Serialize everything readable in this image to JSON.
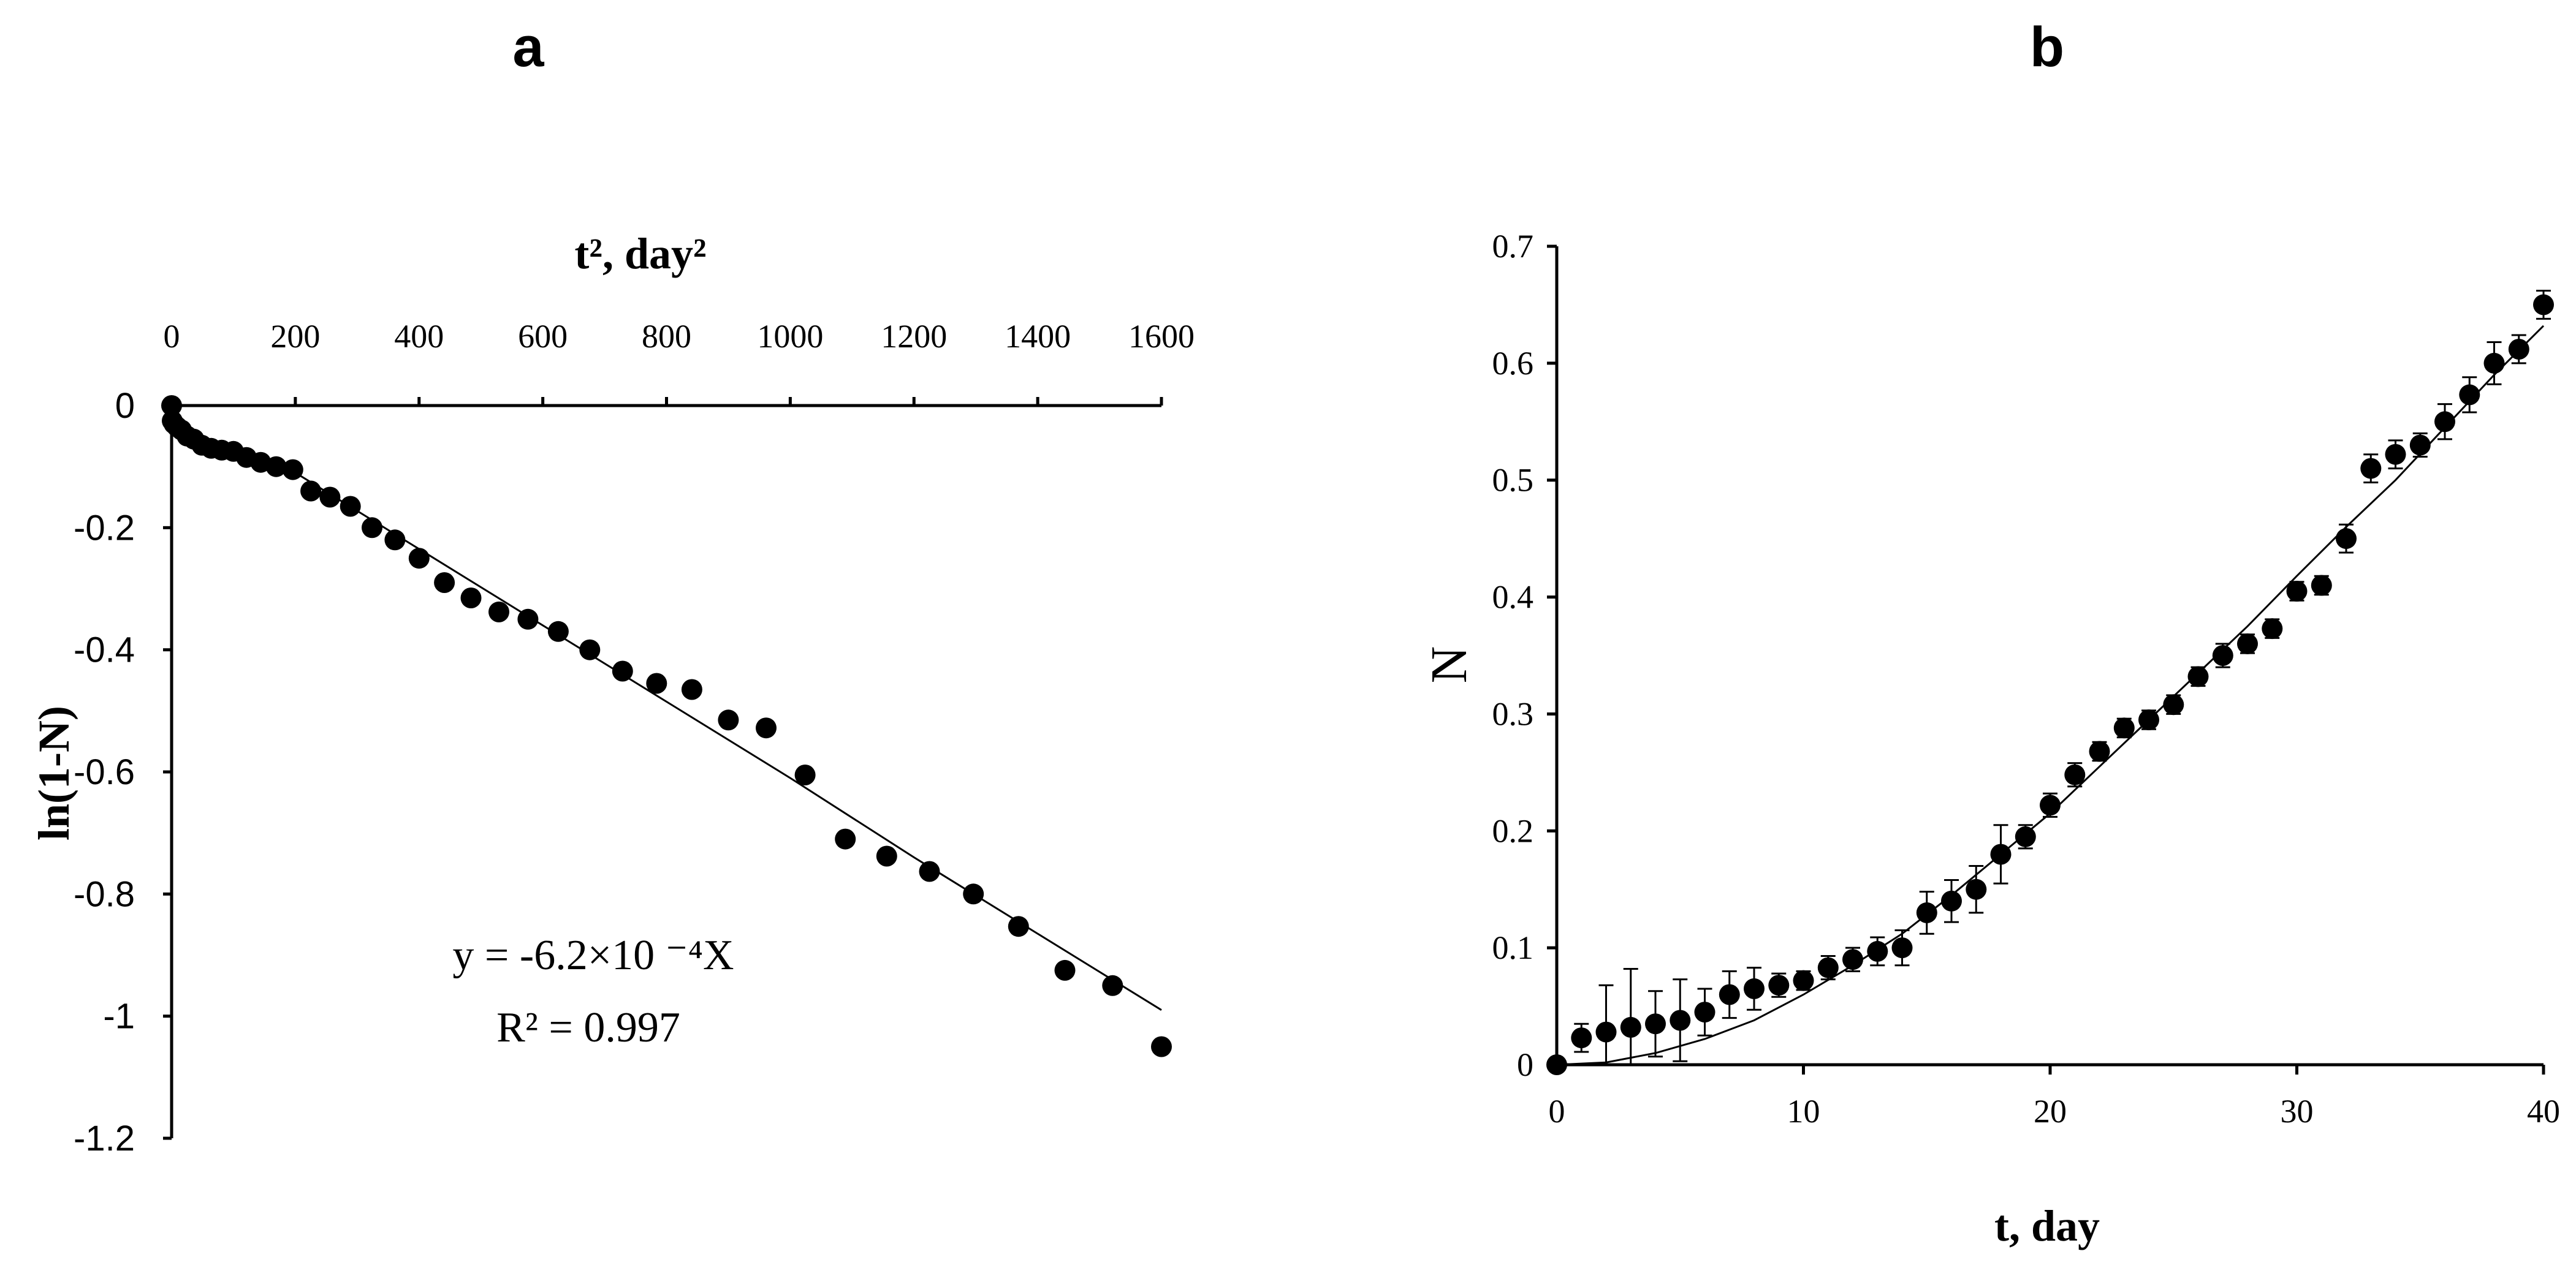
{
  "chart_data": [
    {
      "panel": "a",
      "type": "scatter",
      "xlabel": "t², day²",
      "ylabel": "ln(1-N)",
      "xlim": [
        0,
        1600
      ],
      "ylim": [
        -1.2,
        0
      ],
      "x_ticks": [
        0,
        200,
        400,
        600,
        800,
        1000,
        1200,
        1400,
        1600
      ],
      "y_ticks": [
        0,
        -0.2,
        -0.4,
        -0.6,
        -0.8,
        -1,
        -1.2
      ],
      "x_axis_position": "top",
      "grid": false,
      "legend": "none",
      "annotation": [
        "y = -6.2×10 ⁻⁴X",
        "R² = 0.997"
      ],
      "points": {
        "x": [
          0,
          1,
          4,
          9,
          16,
          25,
          36,
          49,
          64,
          81,
          100,
          121,
          144,
          169,
          196,
          225,
          256,
          289,
          324,
          361,
          400,
          441,
          484,
          529,
          576,
          625,
          676,
          729,
          784,
          841,
          900,
          961,
          1024,
          1089,
          1156,
          1225,
          1296,
          1369,
          1444,
          1521,
          1600
        ],
        "y": [
          0,
          -0.025,
          -0.03,
          -0.035,
          -0.04,
          -0.05,
          -0.055,
          -0.065,
          -0.07,
          -0.073,
          -0.075,
          -0.085,
          -0.093,
          -0.1,
          -0.105,
          -0.14,
          -0.15,
          -0.165,
          -0.2,
          -0.22,
          -0.25,
          -0.29,
          -0.315,
          -0.338,
          -0.35,
          -0.37,
          -0.4,
          -0.435,
          -0.455,
          -0.465,
          -0.515,
          -0.528,
          -0.605,
          -0.71,
          -0.738,
          -0.763,
          -0.8,
          -0.853,
          -0.925,
          -0.95,
          -1.05
        ]
      },
      "fit_line": {
        "x": [
          0,
          5,
          20,
          50,
          100,
          150,
          200,
          400,
          600,
          800,
          1000,
          1200,
          1400,
          1600
        ],
        "y": [
          0,
          -0.015,
          -0.035,
          -0.055,
          -0.075,
          -0.09,
          -0.11,
          -0.235,
          -0.36,
          -0.485,
          -0.61,
          -0.74,
          -0.865,
          -0.99
        ]
      }
    },
    {
      "panel": "b",
      "type": "scatter",
      "xlabel": "t, day",
      "ylabel": "N",
      "xlim": [
        0,
        40
      ],
      "ylim": [
        0,
        0.7
      ],
      "x_ticks": [
        0,
        10,
        20,
        30,
        40
      ],
      "y_ticks": [
        0,
        0.1,
        0.2,
        0.3,
        0.4,
        0.5,
        0.6,
        0.7
      ],
      "grid": false,
      "legend": "none",
      "points": {
        "x": [
          0,
          1,
          2,
          3,
          4,
          5,
          6,
          7,
          8,
          9,
          10,
          11,
          12,
          13,
          14,
          15,
          16,
          17,
          18,
          19,
          20,
          21,
          22,
          23,
          24,
          25,
          26,
          27,
          28,
          29,
          30,
          31,
          32,
          33,
          34,
          35,
          36,
          37,
          38,
          39,
          40
        ],
        "y": [
          0,
          0.023,
          0.028,
          0.032,
          0.035,
          0.038,
          0.045,
          0.06,
          0.065,
          0.068,
          0.072,
          0.083,
          0.09,
          0.097,
          0.1,
          0.13,
          0.14,
          0.15,
          0.18,
          0.195,
          0.222,
          0.248,
          0.268,
          0.288,
          0.295,
          0.308,
          0.332,
          0.35,
          0.36,
          0.373,
          0.405,
          0.41,
          0.45,
          0.51,
          0.522,
          0.53,
          0.55,
          0.573,
          0.6,
          0.612,
          0.65
        ],
        "error": [
          0,
          0.012,
          0.04,
          0.05,
          0.028,
          0.035,
          0.02,
          0.02,
          0.018,
          0.01,
          0.008,
          0.01,
          0.01,
          0.012,
          0.015,
          0.018,
          0.018,
          0.02,
          0.025,
          0.01,
          0.01,
          0.01,
          0.008,
          0.008,
          0.008,
          0.008,
          0.008,
          0.01,
          0.008,
          0.008,
          0.008,
          0.008,
          0.012,
          0.012,
          0.012,
          0.01,
          0.015,
          0.015,
          0.018,
          0.012,
          0.012
        ]
      },
      "fit_line": {
        "x": [
          0,
          2,
          4,
          6,
          8,
          10,
          12,
          14,
          16,
          18,
          20,
          22,
          24,
          26,
          28,
          30,
          32,
          34,
          36,
          38,
          40
        ],
        "y": [
          0,
          0.002,
          0.01,
          0.022,
          0.038,
          0.06,
          0.085,
          0.112,
          0.145,
          0.18,
          0.215,
          0.255,
          0.295,
          0.335,
          0.375,
          0.418,
          0.46,
          0.5,
          0.545,
          0.59,
          0.632
        ]
      }
    }
  ],
  "panel_labels": [
    "a",
    "b"
  ]
}
